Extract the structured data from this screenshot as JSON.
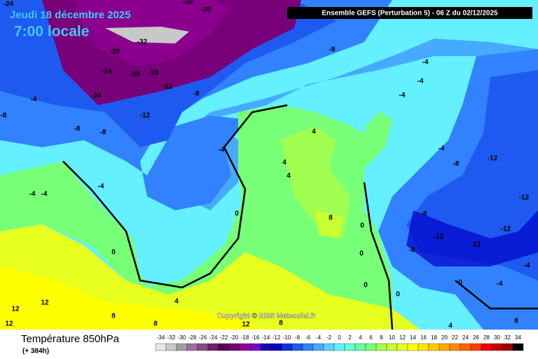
{
  "header": {
    "date": "Jeudi 18 décembre 2025",
    "time": "7:00 locale",
    "model": "Ensemble GEFS  (Perturbation 5)  -  06 Z du 02/12/2025"
  },
  "copyright": "Copyright © 2025 Meteociel.fr",
  "legend": {
    "title": "Température 850hPa",
    "lead": "(+ 384h)",
    "values": [
      -34,
      -32,
      -30,
      -28,
      -26,
      -24,
      -22,
      -20,
      -18,
      -16,
      -14,
      -12,
      -10,
      -8,
      -6,
      -4,
      -2,
      0,
      2,
      4,
      6,
      8,
      10,
      12,
      14,
      16,
      18,
      20,
      22,
      24,
      26,
      28,
      30,
      32,
      34
    ],
    "colors": [
      "#e6e6e6",
      "#c8c8c8",
      "#a0a0a0",
      "#9c6e9c",
      "#8a4a8a",
      "#6e1e6e",
      "#5a005a",
      "#780078",
      "#96009a",
      "#7800c8",
      "#1e00b4",
      "#0000c8",
      "#0a32dc",
      "#1e5af0",
      "#3282ff",
      "#46aaff",
      "#5ad2ff",
      "#64f0ff",
      "#64ffd2",
      "#64ffa0",
      "#78ff78",
      "#a0ff50",
      "#c8ff32",
      "#e6ff1e",
      "#ffff00",
      "#ffe600",
      "#ffc800",
      "#ffaa00",
      "#ff8c00",
      "#ff6400",
      "#ff3c00",
      "#f00000",
      "#c80000",
      "#a00000",
      "#000000"
    ]
  },
  "map_labels": [
    -24,
    -20,
    -20,
    -32,
    -28,
    -24,
    -20,
    -16,
    -12,
    -8,
    -12,
    -24,
    -4,
    -8,
    -8,
    -8,
    -8,
    -4,
    -4,
    -4,
    -4,
    4,
    4,
    4,
    -4,
    -4,
    -4,
    0,
    0,
    -4,
    -8,
    -12,
    -12,
    -8,
    -12,
    -12,
    -12,
    -8,
    8,
    0,
    0,
    0,
    0,
    0,
    -4,
    -4,
    4,
    12,
    12,
    12,
    8,
    8,
    12,
    8,
    4,
    8
  ]
}
